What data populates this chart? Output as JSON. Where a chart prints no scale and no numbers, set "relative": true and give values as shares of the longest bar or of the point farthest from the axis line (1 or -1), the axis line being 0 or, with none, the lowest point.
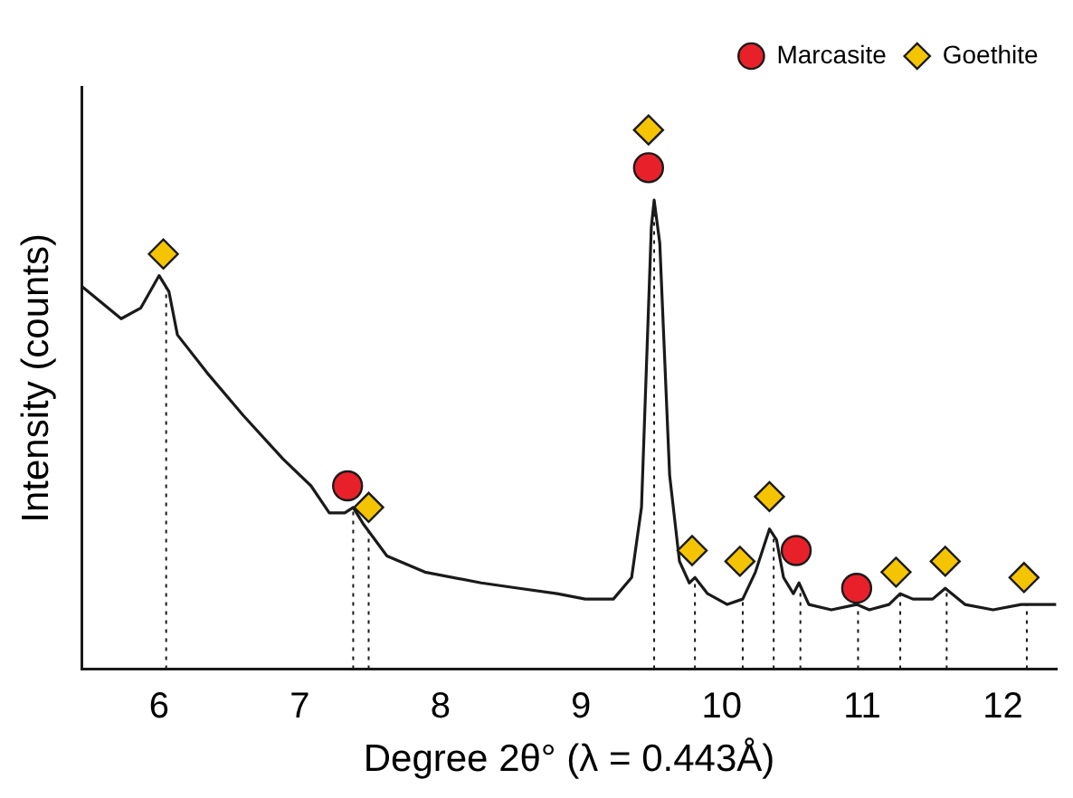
{
  "chart_data": {
    "type": "line",
    "relative": true,
    "xlabel": "Degree 2θ° (λ = 0.443Å)",
    "ylabel": "Intensity (counts)",
    "xlim": [
      5.45,
      12.38
    ],
    "xticks": [
      6,
      7,
      8,
      9,
      10,
      11,
      12
    ],
    "tick_labels": "x",
    "grid": false,
    "legend": "top right",
    "series": [
      {
        "color": "#1a1a1a",
        "marker": "none",
        "line_style": "solid",
        "x": [
          5.45,
          5.73,
          5.87,
          6.0,
          6.07,
          6.13,
          6.34,
          6.6,
          6.88,
          7.08,
          7.21,
          7.32,
          7.38,
          7.45,
          7.62,
          7.89,
          8.29,
          8.56,
          8.83,
          9.03,
          9.23,
          9.36,
          9.43,
          9.5,
          9.52,
          9.56,
          9.63,
          9.7,
          9.77,
          9.81,
          9.9,
          10.04,
          10.15,
          10.24,
          10.34,
          10.39,
          10.44,
          10.51,
          10.55,
          10.62,
          10.78,
          10.96,
          11.05,
          11.19,
          11.27,
          11.36,
          11.5,
          11.59,
          11.73,
          11.93,
          12.13,
          12.26,
          12.38
        ],
        "values": [
          0.71,
          0.65,
          0.67,
          0.73,
          0.7,
          0.62,
          0.55,
          0.47,
          0.39,
          0.34,
          0.29,
          0.29,
          0.3,
          0.27,
          0.21,
          0.18,
          0.16,
          0.15,
          0.14,
          0.13,
          0.13,
          0.17,
          0.3,
          0.82,
          0.87,
          0.79,
          0.36,
          0.2,
          0.16,
          0.17,
          0.14,
          0.12,
          0.13,
          0.18,
          0.26,
          0.24,
          0.17,
          0.14,
          0.16,
          0.12,
          0.11,
          0.12,
          0.11,
          0.12,
          0.14,
          0.13,
          0.13,
          0.15,
          0.12,
          0.11,
          0.12,
          0.12,
          0.12
        ]
      },
      {
        "name": "Marcasite",
        "type": "scatter",
        "color": "#e8202a",
        "marker": "circle",
        "x": [
          7.34,
          9.48,
          10.53,
          10.96
        ],
        "values": [
          0.34,
          0.93,
          0.22,
          0.15
        ]
      },
      {
        "name": "Goethite",
        "type": "scatter",
        "color": "#f5c400",
        "marker": "diamond",
        "x": [
          6.03,
          7.49,
          9.48,
          9.79,
          10.13,
          10.34,
          11.24,
          11.59,
          12.15
        ],
        "values": [
          0.77,
          0.3,
          1.0,
          0.22,
          0.2,
          0.32,
          0.18,
          0.2,
          0.17
        ]
      }
    ],
    "ref_lines": [
      {
        "axis": "x",
        "value": 6.05,
        "line_style": "dotted"
      },
      {
        "axis": "x",
        "value": 7.38,
        "line_style": "dotted"
      },
      {
        "axis": "x",
        "value": 7.49,
        "line_style": "dotted"
      },
      {
        "axis": "x",
        "value": 9.52,
        "line_style": "dotted"
      },
      {
        "axis": "x",
        "value": 9.81,
        "line_style": "dotted"
      },
      {
        "axis": "x",
        "value": 10.15,
        "line_style": "dotted"
      },
      {
        "axis": "x",
        "value": 10.37,
        "line_style": "dotted"
      },
      {
        "axis": "x",
        "value": 10.56,
        "line_style": "dotted"
      },
      {
        "axis": "x",
        "value": 10.97,
        "line_style": "dotted"
      },
      {
        "axis": "x",
        "value": 11.27,
        "line_style": "dotted"
      },
      {
        "axis": "x",
        "value": 11.6,
        "line_style": "dotted"
      },
      {
        "axis": "x",
        "value": 12.17,
        "line_style": "dotted"
      }
    ]
  }
}
